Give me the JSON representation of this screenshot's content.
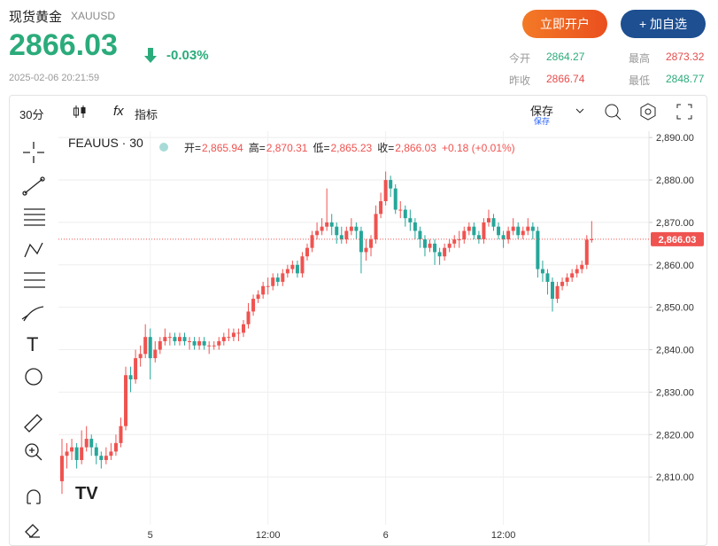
{
  "header": {
    "title": "现货黄金",
    "symbol": "XAUUSD",
    "price": 2866.03,
    "change": {
      "value": -0.03,
      "label": "-0.03%"
    },
    "time": "2025-02-06 20:21:59",
    "open_account": "立即开户",
    "add_watch": "+ 加自选",
    "stats": [
      {
        "label": "今开",
        "value": 2864.27
      },
      {
        "label": "最高",
        "value": 2873.32
      },
      {
        "label": "昨收",
        "value": 2866.74
      },
      {
        "label": "最低",
        "value": 2848.77
      }
    ]
  },
  "toolbar": {
    "interval": "30分",
    "indicators": "指标",
    "save": "保存",
    "save_sub": "保存"
  },
  "chart_data": {
    "type": "candlestick",
    "symbol": "FEAUUS · 30",
    "legend_labels": [
      "开=",
      "高=",
      "低=",
      "收="
    ],
    "legend_values": [
      "2,865.94",
      "2,870.31",
      "2,865.23",
      "2,866.03"
    ],
    "legend_change": "+0.18 (+0.01%)",
    "up_color": "#ef5350",
    "down_color": "#26a69a",
    "grid": true,
    "ylim": [
      2797.5,
      2891.5
    ],
    "yticks": [
      {
        "value": 2810,
        "label": "2,810.00"
      },
      {
        "value": 2820,
        "label": "2,820.00"
      },
      {
        "value": 2830,
        "label": "2,830.00"
      },
      {
        "value": 2840,
        "label": "2,840.00"
      },
      {
        "value": 2850,
        "label": "2,850.00"
      },
      {
        "value": 2860,
        "label": "2,860.00"
      },
      {
        "value": 2870,
        "label": "2,870.00"
      },
      {
        "value": 2880,
        "label": "2,880.00"
      },
      {
        "value": 2890,
        "label": "2,890.00"
      }
    ],
    "last": {
      "value": 2866.03,
      "label": "2,866.03"
    },
    "categories": [
      null,
      null,
      null,
      null,
      null,
      null,
      null,
      null,
      null,
      null,
      null,
      null,
      null,
      null,
      null,
      null,
      null,
      null,
      "5",
      null,
      null,
      null,
      null,
      null,
      null,
      null,
      null,
      null,
      null,
      null,
      null,
      null,
      null,
      null,
      null,
      null,
      null,
      null,
      null,
      null,
      null,
      null,
      "12:00",
      null,
      null,
      null,
      null,
      null,
      null,
      null,
      null,
      null,
      null,
      null,
      null,
      null,
      null,
      null,
      null,
      null,
      null,
      null,
      null,
      null,
      null,
      null,
      "6",
      null,
      null,
      null,
      null,
      null,
      null,
      null,
      null,
      null,
      null,
      null,
      null,
      null,
      null,
      null,
      null,
      null,
      null,
      null,
      null,
      null,
      null,
      null,
      "12:00",
      null,
      null,
      null,
      null,
      null,
      null,
      null,
      null,
      null,
      null,
      null,
      null,
      null,
      null,
      null,
      null,
      null,
      null
    ],
    "ohlc": [
      [
        2809,
        2819,
        2806,
        2815
      ],
      [
        2815,
        2818,
        2812,
        2816
      ],
      [
        2816,
        2819,
        2814,
        2817
      ],
      [
        2817,
        2818,
        2812,
        2814
      ],
      [
        2814,
        2821,
        2813,
        2817
      ],
      [
        2817,
        2822,
        2816,
        2819
      ],
      [
        2819,
        2820,
        2815,
        2817
      ],
      [
        2817,
        2818,
        2813,
        2815
      ],
      [
        2815,
        2816,
        2812,
        2814
      ],
      [
        2814,
        2817,
        2813,
        2815
      ],
      [
        2815,
        2818,
        2814,
        2816
      ],
      [
        2816,
        2820,
        2815,
        2818
      ],
      [
        2818,
        2824,
        2817,
        2822
      ],
      [
        2822,
        2836,
        2821,
        2834
      ],
      [
        2834,
        2836,
        2830,
        2833
      ],
      [
        2833,
        2840,
        2832,
        2838
      ],
      [
        2838,
        2841,
        2836,
        2839
      ],
      [
        2839,
        2846,
        2838,
        2843
      ],
      [
        2843,
        2845,
        2833,
        2838
      ],
      [
        2838,
        2842,
        2837,
        2840
      ],
      [
        2840,
        2843,
        2839,
        2842
      ],
      [
        2842,
        2845,
        2841,
        2843
      ],
      [
        2843,
        2844,
        2841,
        2843
      ],
      [
        2843,
        2844,
        2841,
        2842
      ],
      [
        2842,
        2844,
        2841,
        2843
      ],
      [
        2843,
        2844,
        2841,
        2842
      ],
      [
        2842,
        2843,
        2840,
        2842
      ],
      [
        2842,
        2843,
        2840,
        2841
      ],
      [
        2841,
        2843,
        2840,
        2842
      ],
      [
        2842,
        2843,
        2840,
        2841
      ],
      [
        2841,
        2842,
        2839,
        2841
      ],
      [
        2841,
        2842,
        2840,
        2841
      ],
      [
        2841,
        2843,
        2840,
        2842
      ],
      [
        2842,
        2844,
        2841,
        2843
      ],
      [
        2843,
        2845,
        2842,
        2843
      ],
      [
        2843,
        2845,
        2842,
        2844
      ],
      [
        2844,
        2845,
        2842,
        2844
      ],
      [
        2844,
        2847,
        2843,
        2846
      ],
      [
        2846,
        2851,
        2845,
        2849
      ],
      [
        2849,
        2853,
        2848,
        2852
      ],
      [
        2852,
        2854,
        2851,
        2853
      ],
      [
        2853,
        2856,
        2852,
        2855
      ],
      [
        2855,
        2857,
        2853,
        2855
      ],
      [
        2855,
        2858,
        2854,
        2857
      ],
      [
        2857,
        2858,
        2855,
        2856
      ],
      [
        2856,
        2859,
        2855,
        2858
      ],
      [
        2858,
        2860,
        2857,
        2859
      ],
      [
        2859,
        2861,
        2858,
        2860
      ],
      [
        2860,
        2861,
        2857,
        2858
      ],
      [
        2858,
        2863,
        2857,
        2862
      ],
      [
        2862,
        2865,
        2861,
        2864
      ],
      [
        2864,
        2868,
        2863,
        2867
      ],
      [
        2867,
        2870,
        2866,
        2868
      ],
      [
        2868,
        2871,
        2867,
        2869
      ],
      [
        2869,
        2878,
        2868,
        2870
      ],
      [
        2870,
        2872,
        2867,
        2869
      ],
      [
        2869,
        2870,
        2865,
        2867
      ],
      [
        2867,
        2869,
        2865,
        2866
      ],
      [
        2866,
        2869,
        2865,
        2868
      ],
      [
        2868,
        2871,
        2867,
        2869
      ],
      [
        2869,
        2870,
        2866,
        2868
      ],
      [
        2868,
        2869,
        2858,
        2863
      ],
      [
        2863,
        2866,
        2861,
        2864
      ],
      [
        2864,
        2867,
        2862,
        2866
      ],
      [
        2866,
        2874,
        2865,
        2872
      ],
      [
        2872,
        2877,
        2871,
        2875
      ],
      [
        2875,
        2882,
        2874,
        2880
      ],
      [
        2880,
        2881,
        2876,
        2878
      ],
      [
        2878,
        2879,
        2872,
        2873
      ],
      [
        2873,
        2875,
        2871,
        2873
      ],
      [
        2873,
        2874,
        2869,
        2871
      ],
      [
        2871,
        2873,
        2868,
        2870
      ],
      [
        2870,
        2871,
        2866,
        2868
      ],
      [
        2868,
        2869,
        2864,
        2866
      ],
      [
        2866,
        2867,
        2862,
        2864
      ],
      [
        2864,
        2866,
        2863,
        2865
      ],
      [
        2865,
        2866,
        2860,
        2863
      ],
      [
        2863,
        2864,
        2860,
        2862
      ],
      [
        2862,
        2865,
        2861,
        2864
      ],
      [
        2864,
        2866,
        2863,
        2865
      ],
      [
        2865,
        2867,
        2864,
        2866
      ],
      [
        2866,
        2868,
        2864,
        2866
      ],
      [
        2866,
        2869,
        2865,
        2868
      ],
      [
        2868,
        2870,
        2867,
        2869
      ],
      [
        2869,
        2870,
        2866,
        2867
      ],
      [
        2867,
        2868,
        2865,
        2866
      ],
      [
        2866,
        2871,
        2865,
        2870
      ],
      [
        2870,
        2873,
        2869,
        2871
      ],
      [
        2871,
        2872,
        2868,
        2869
      ],
      [
        2869,
        2870,
        2866,
        2867
      ],
      [
        2867,
        2868,
        2864,
        2866
      ],
      [
        2866,
        2869,
        2865,
        2868
      ],
      [
        2868,
        2871,
        2867,
        2869
      ],
      [
        2869,
        2870,
        2866,
        2867
      ],
      [
        2867,
        2869,
        2866,
        2868
      ],
      [
        2868,
        2871,
        2867,
        2869
      ],
      [
        2869,
        2870,
        2866,
        2868
      ],
      [
        2868,
        2869,
        2857,
        2859
      ],
      [
        2859,
        2861,
        2856,
        2858
      ],
      [
        2858,
        2859,
        2853,
        2856
      ],
      [
        2856,
        2857,
        2849,
        2852
      ],
      [
        2852,
        2856,
        2851,
        2855
      ],
      [
        2855,
        2857,
        2854,
        2856
      ],
      [
        2856,
        2858,
        2855,
        2857
      ],
      [
        2857,
        2859,
        2856,
        2858
      ],
      [
        2858,
        2860,
        2857,
        2859
      ],
      [
        2859,
        2861,
        2858,
        2860
      ],
      [
        2860,
        2867,
        2859,
        2865.94
      ],
      [
        2865.94,
        2870.31,
        2865.23,
        2866.03
      ]
    ]
  }
}
